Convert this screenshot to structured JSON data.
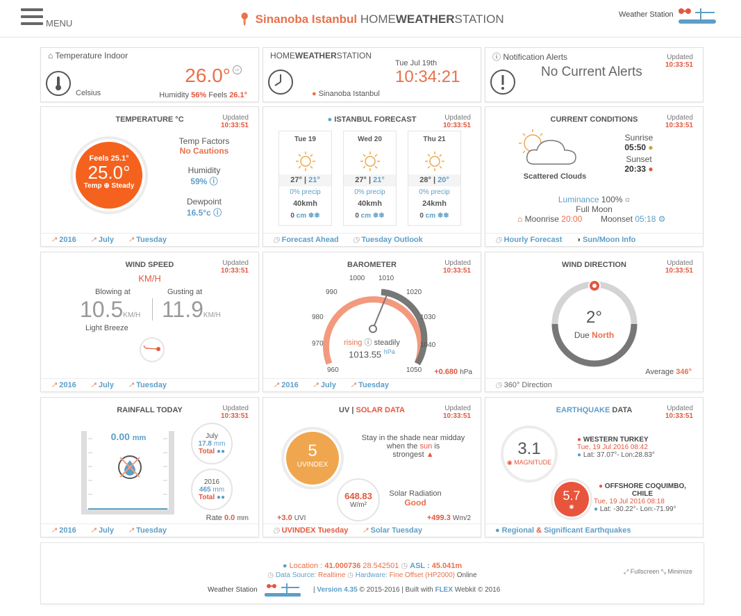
{
  "header": {
    "menu": "MENU",
    "location": "Sinanoba Istanbul",
    "brand_a": "HOME",
    "brand_b": "WEATHER",
    "brand_c": "STATION",
    "ws": "Weather Station"
  },
  "indoor": {
    "title": "Temperature Indoor",
    "value": "26.0°",
    "unit": "Celsius",
    "hum_label": "Humidity ",
    "hum": "56%",
    "feels_label": " Feels ",
    "feels": "26.1°"
  },
  "hws": {
    "a": "HOME",
    "b": "WEATHER",
    "c": "STATION",
    "date": "Tue Jul 19th",
    "time": "10:34:21",
    "loc": "Sinanoba Istanbul"
  },
  "alerts": {
    "title": "Notification Alerts",
    "updated": "Updated",
    "time": "10:33:51",
    "text": "No Current Alerts"
  },
  "temp": {
    "title": "TEMPERATURE °C",
    "updated": "Updated",
    "time": "10:33:51",
    "feels": "Feels 25.1°",
    "value": "25.0°",
    "trend": "Temp",
    "trend2": "Steady",
    "factors": "Temp Factors",
    "cautions": "No Cautions",
    "hum_label": "Humidity",
    "hum": "59%",
    "dew_label": "Dewpoint",
    "dew": "16.5°c",
    "f1": "2016",
    "f2": "July",
    "f3": "Tuesday"
  },
  "forecast": {
    "title": "ISTANBUL FORECAST",
    "updated": "Updated",
    "time": "10:33:51",
    "days": [
      {
        "d": "Tue 19",
        "hi": "27°",
        "lo": "21°",
        "p": "0% precip",
        "w": "40kmh",
        "s": "0"
      },
      {
        "d": "Wed 20",
        "hi": "27°",
        "lo": "21°",
        "p": "0% precip",
        "w": "40kmh",
        "s": "0"
      },
      {
        "d": "Thu 21",
        "hi": "28°",
        "lo": "20°",
        "p": "0% precip",
        "w": "24kmh",
        "s": "0"
      }
    ],
    "cm": "cm",
    "f1": "Forecast Ahead",
    "f2": "Tuesday Outlook"
  },
  "conditions": {
    "title": "CURRENT CONDITIONS",
    "updated": "Updated",
    "time": "10:33:51",
    "desc": "Scattered Clouds",
    "sunrise_l": "Sunrise",
    "sunrise": "05:50",
    "sunset_l": "Sunset",
    "sunset": "20:33",
    "lum_l": "Luminance",
    "lum": "100%",
    "moon": "Full Moon",
    "mr_l": "Moonrise",
    "mr": "20:00",
    "ms_l": "Moonset",
    "ms": "05:18",
    "f1": "Hourly Forecast",
    "f2": "Sun/Moon Info"
  },
  "wind": {
    "title": "WIND SPEED",
    "updated": "Updated",
    "time": "10:33:51",
    "unit": "KM/H",
    "blow_l": "Blowing at",
    "blow": "10.5",
    "gust_l": "Gusting at",
    "gust": "11.9",
    "u": "KM/H",
    "desc": "Light Breeze",
    "f1": "2016",
    "f2": "July",
    "f3": "Tuesday"
  },
  "baro": {
    "title": "BAROMETER",
    "updated": "Updated",
    "time": "10:33:51",
    "ticks": [
      "960",
      "970",
      "980",
      "990",
      "1000",
      "1010",
      "1020",
      "1030",
      "1040",
      "1050"
    ],
    "rising": "rising",
    "steady": "steadily",
    "value": "1013.55",
    "unit": "hPa",
    "trend": "+0.680",
    "tunit": "hPa",
    "f1": "2016",
    "f2": "July",
    "f3": "Tuesday"
  },
  "winddir": {
    "title": "WIND DIRECTION",
    "updated": "Updated",
    "time": "10:33:51",
    "deg": "2°",
    "due": "Due",
    "dir": "North",
    "avg_l": "Average",
    "avg": "346°",
    "f1": "360° Direction"
  },
  "rain": {
    "title": "RAINFALL TODAY",
    "updated": "Updated",
    "time": "10:33:51",
    "value": "0.00",
    "unit": "mm",
    "jul": "July",
    "jul_v": "17.8",
    "mm": "mm",
    "total": "Total",
    "yr": "2016",
    "yr_v": "465",
    "rate_l": "Rate",
    "rate": "0.0",
    "f1": "2016",
    "f2": "July",
    "f3": "Tuesday"
  },
  "uv": {
    "title_a": "UV",
    "title_b": "SOLAR DATA",
    "updated": "Updated",
    "time": "10:33:51",
    "value": "5",
    "label": "UVINDEX",
    "advice": "Stay in the shade near midday when the",
    "sun": "sun",
    "is": "is",
    "strongest": "strongest",
    "solar_v": "648.83",
    "solar_u": "W/m²",
    "solar_l": "Solar Radiation",
    "solar_s": "Good",
    "uvt": "+3.0",
    "uvt_u": "UVI",
    "st": "+499.3",
    "st_u": "Wm/2",
    "f1": "UVINDEX Tuesday",
    "f2": "Solar Tuesday"
  },
  "quake": {
    "title_a": "EARTHQUAKE",
    "title_b": "DATA",
    "updated": "Updated",
    "time": "10:33:51",
    "mag": "3.1",
    "mag_l": "MAGNITUDE",
    "loc1": "WESTERN TURKEY",
    "date1": "Tue, 19 Jul 2016 08:42",
    "ll1": "Lat: 37.07°- Lon:28.83°",
    "mag2": "5.7",
    "loc2": "OFFSHORE COQUIMBO, CHILE",
    "date2": "Tue, 19 Jul 2016 08:18",
    "ll2": "Lat: -30.22°- Lon:-71.99°",
    "f1": "Regional",
    "f2": "&",
    "f3": "Significant Earthquakes"
  },
  "footer": {
    "loc_l": "Location :",
    "lat": "41.000736",
    "lon": "28.542501",
    "asl_l": "ASL :",
    "asl": "45.041m",
    "ds_l": "Data Source:",
    "ds": "Realtime",
    "hw_l": "Hardware:",
    "hw": "Fine Offset (HP2000)",
    "online": "Online",
    "ws": "Weather Station",
    "ver": "Version 4.35",
    "copy": "© 2015-2016",
    "built": "Built with",
    "flex": "FLEX",
    "webkit": "Webkit © 2016",
    "fs": "Fullscreen",
    "min": "Minimize"
  }
}
